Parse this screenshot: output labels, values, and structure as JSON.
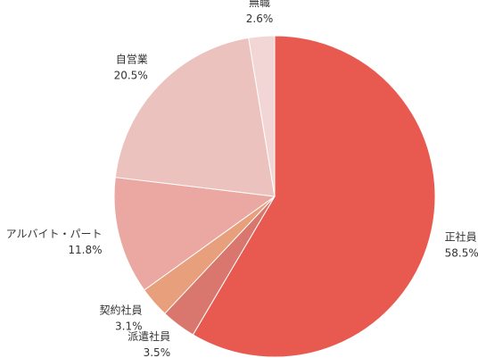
{
  "chart_data": {
    "type": "pie",
    "categories": [
      "正社員",
      "派遣社員",
      "契約社員",
      "アルバイト・パート",
      "自営業",
      "無職"
    ],
    "values": [
      58.5,
      3.5,
      3.1,
      11.8,
      20.5,
      2.6
    ],
    "value_labels": [
      "58.5%",
      "3.5%",
      "3.1%",
      "11.8%",
      "20.5%",
      "2.6%"
    ],
    "colors": [
      "#e85a4f",
      "#d9776f",
      "#e8a07c",
      "#eba8a2",
      "#ebc2bd",
      "#f2d6d6"
    ]
  }
}
